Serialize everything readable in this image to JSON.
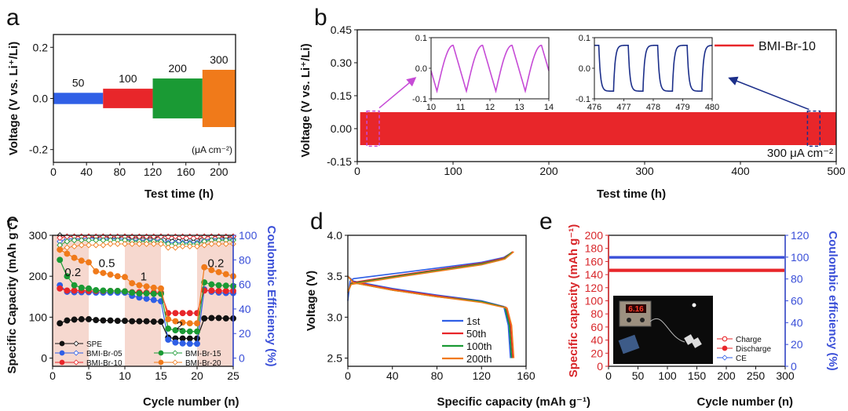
{
  "colors": {
    "blue": "#2f5fe6",
    "red": "#e8262a",
    "green": "#1a9a34",
    "orange": "#f07a1a",
    "magenta": "#c64bd6",
    "navy": "#1c2f8a",
    "black": "#111111",
    "shade": "#f6d8cf",
    "axis_blue": "#3a4fd8",
    "axis_red": "#d8262a"
  },
  "chart_data": [
    {
      "id": "a",
      "type": "area",
      "panel_label": "a",
      "xlabel": "Test time (h)",
      "ylabel": "Voltage (V vs. Li⁺/Li)",
      "xlim": [
        0,
        220
      ],
      "ylim": [
        -0.25,
        0.25
      ],
      "x_ticks": [
        "0",
        "40",
        "80",
        "120",
        "160",
        "200"
      ],
      "y_ticks": [
        "-0.2",
        "0.0",
        "0.2"
      ],
      "unit_note": "(μA cm⁻²)",
      "segments": [
        {
          "label": "50",
          "x": [
            0,
            60
          ],
          "amplitude": 0.022,
          "color": "blue"
        },
        {
          "label": "100",
          "x": [
            60,
            120
          ],
          "amplitude": 0.038,
          "color": "red"
        },
        {
          "label": "200",
          "x": [
            120,
            180
          ],
          "amplitude": 0.078,
          "color": "green"
        },
        {
          "label": "300",
          "x": [
            180,
            220
          ],
          "amplitude": 0.112,
          "color": "orange"
        }
      ]
    },
    {
      "id": "b",
      "type": "line",
      "panel_label": "b",
      "xlabel": "Test time (h)",
      "ylabel": "Voltage (V vs. Li⁺/Li)",
      "xlim": [
        0,
        500
      ],
      "ylim": [
        -0.15,
        0.45
      ],
      "x_ticks": [
        "0",
        "100",
        "200",
        "300",
        "400",
        "500"
      ],
      "y_ticks": [
        "-0.15",
        "0.00",
        "0.15",
        "0.30",
        "0.45"
      ],
      "series": [
        {
          "name": "BMI-Br-10",
          "amplitude": 0.075,
          "color": "red"
        }
      ],
      "annotation": "300 μA cm⁻²",
      "insets": [
        {
          "x_ticks": [
            "10",
            "11",
            "12",
            "13",
            "14"
          ],
          "y_ticks": [
            "0.1",
            "0.0",
            "-0.1"
          ],
          "xlim": [
            10,
            14
          ],
          "cycles": 4,
          "shape": "sawtooth",
          "color": "magenta"
        },
        {
          "x_ticks": [
            "476",
            "477",
            "478",
            "479",
            "480"
          ],
          "y_ticks": [
            "0.1",
            "0.0",
            "-0.1"
          ],
          "xlim": [
            476,
            480
          ],
          "cycles": 4,
          "shape": "square",
          "color": "navy"
        }
      ]
    },
    {
      "id": "c",
      "type": "line",
      "panel_label": "c",
      "xlabel": "Cycle number (n)",
      "ylabel": "Specific Capacity (mAh g⁻¹)",
      "y2label": "Coulombic Efficiency (%)",
      "xlim": [
        0,
        25
      ],
      "ylim": [
        -20,
        300
      ],
      "y2lim": [
        -6.67,
        100
      ],
      "x_ticks": [
        "0",
        "5",
        "10",
        "15",
        "20",
        "25"
      ],
      "y_ticks": [
        "0",
        "100",
        "200",
        "300"
      ],
      "y2_ticks": [
        "0",
        "20",
        "40",
        "60",
        "80",
        "100"
      ],
      "rate_labels": [
        "0.2",
        "0.5",
        "1",
        "2",
        "0.2"
      ],
      "shaded_ranges": [
        [
          0,
          5
        ],
        [
          10,
          15
        ],
        [
          20,
          25
        ]
      ],
      "x": [
        1,
        2,
        3,
        4,
        5,
        6,
        7,
        8,
        9,
        10,
        11,
        12,
        13,
        14,
        15,
        16,
        17,
        18,
        19,
        20,
        21,
        22,
        23,
        24,
        25
      ],
      "series": [
        {
          "name": "SPE",
          "color": "black",
          "filled": true,
          "values": [
            85,
            92,
            94,
            95,
            95,
            93,
            92,
            92,
            91,
            91,
            90,
            90,
            90,
            89,
            89,
            50,
            48,
            48,
            48,
            48,
            97,
            98,
            98,
            97,
            97
          ],
          "ce": [
            100,
            99,
            99,
            99,
            99,
            98,
            99,
            98,
            98,
            99,
            98,
            98,
            98,
            98,
            99,
            96,
            97,
            96,
            96,
            96,
            99,
            99,
            99,
            98,
            99
          ]
        },
        {
          "name": "BMI-Br-05",
          "color": "blue",
          "filled": true,
          "values": [
            178,
            162,
            161,
            161,
            161,
            160,
            160,
            160,
            160,
            160,
            152,
            148,
            145,
            142,
            139,
            45,
            38,
            36,
            35,
            35,
            168,
            162,
            160,
            159,
            159
          ],
          "ce": [
            95,
            97,
            97,
            97,
            98,
            97,
            97,
            97,
            97,
            97,
            96,
            96,
            96,
            96,
            96,
            94,
            94,
            94,
            94,
            94,
            96,
            97,
            97,
            97,
            97
          ]
        },
        {
          "name": "BMI-Br-10",
          "color": "red",
          "filled": true,
          "values": [
            170,
            165,
            165,
            165,
            164,
            164,
            164,
            164,
            164,
            163,
            161,
            161,
            160,
            160,
            160,
            110,
            110,
            110,
            110,
            110,
            165,
            165,
            164,
            164,
            164
          ],
          "ce": [
            98,
            99,
            99,
            99,
            99,
            99,
            99,
            99,
            99,
            99,
            99,
            99,
            99,
            99,
            99,
            99,
            99,
            99,
            99,
            99,
            99,
            99,
            99,
            99,
            99
          ]
        },
        {
          "name": "BMI-Br-15",
          "color": "green",
          "filled": true,
          "values": [
            240,
            200,
            178,
            172,
            170,
            166,
            165,
            164,
            164,
            163,
            160,
            158,
            158,
            157,
            157,
            72,
            68,
            66,
            65,
            65,
            185,
            180,
            178,
            177,
            176
          ],
          "ce": [
            92,
            95,
            96,
            96,
            96,
            96,
            96,
            96,
            96,
            96,
            95,
            95,
            95,
            95,
            95,
            93,
            93,
            93,
            93,
            93,
            95,
            96,
            96,
            96,
            96
          ]
        },
        {
          "name": "BMI-Br-20",
          "color": "orange",
          "filled": true,
          "values": [
            265,
            255,
            245,
            238,
            234,
            212,
            208,
            204,
            200,
            198,
            183,
            178,
            175,
            172,
            170,
            95,
            90,
            87,
            85,
            85,
            222,
            215,
            210,
            205,
            200
          ],
          "ce": [
            88,
            90,
            91,
            92,
            92,
            92,
            92,
            93,
            93,
            93,
            93,
            93,
            93,
            93,
            93,
            90,
            90,
            91,
            91,
            91,
            92,
            93,
            93,
            93,
            93
          ]
        }
      ],
      "legend": [
        "SPE",
        "BMI-Br-05",
        "BMI-Br-10",
        "BMI-Br-15",
        "BMI-Br-20"
      ]
    },
    {
      "id": "d",
      "type": "line",
      "panel_label": "d",
      "xlabel": "Specific capacity (mAh g⁻¹)",
      "ylabel": "Voltage (V)",
      "xlim": [
        0,
        160
      ],
      "ylim": [
        2.4,
        4.0
      ],
      "x_ticks": [
        "0",
        "40",
        "80",
        "120",
        "160"
      ],
      "y_ticks": [
        "2.5",
        "3.0",
        "3.5",
        "4.0"
      ],
      "series": [
        {
          "name": "1st",
          "color": "blue",
          "capacity": 146,
          "charge": [
            [
              0,
              3.2
            ],
            [
              2,
              3.44
            ],
            [
              5,
              3.47
            ],
            [
              40,
              3.53
            ],
            [
              80,
              3.6
            ],
            [
              120,
              3.67
            ],
            [
              140,
              3.73
            ],
            [
              146,
              3.78
            ]
          ],
          "discharge": [
            [
              0,
              3.5
            ],
            [
              5,
              3.44
            ],
            [
              40,
              3.35
            ],
            [
              80,
              3.27
            ],
            [
              120,
              3.2
            ],
            [
              140,
              3.13
            ],
            [
              144,
              2.9
            ],
            [
              146,
              2.5
            ]
          ]
        },
        {
          "name": "50th",
          "color": "red",
          "capacity": 148,
          "charge": [
            [
              0,
              3.3
            ],
            [
              3,
              3.42
            ],
            [
              40,
              3.5
            ],
            [
              80,
              3.58
            ],
            [
              120,
              3.66
            ],
            [
              140,
              3.72
            ],
            [
              148,
              3.8
            ]
          ],
          "discharge": [
            [
              0,
              3.5
            ],
            [
              5,
              3.43
            ],
            [
              40,
              3.34
            ],
            [
              80,
              3.26
            ],
            [
              120,
              3.19
            ],
            [
              142,
              3.12
            ],
            [
              146,
              2.9
            ],
            [
              148,
              2.5
            ]
          ]
        },
        {
          "name": "100th",
          "color": "green",
          "capacity": 147,
          "charge": [
            [
              0,
              3.3
            ],
            [
              3,
              3.41
            ],
            [
              40,
              3.49
            ],
            [
              80,
              3.57
            ],
            [
              120,
              3.65
            ],
            [
              140,
              3.71
            ],
            [
              147,
              3.79
            ]
          ],
          "discharge": [
            [
              0,
              3.5
            ],
            [
              5,
              3.42
            ],
            [
              40,
              3.33
            ],
            [
              80,
              3.25
            ],
            [
              120,
              3.19
            ],
            [
              141,
              3.12
            ],
            [
              145,
              2.9
            ],
            [
              147,
              2.5
            ]
          ]
        },
        {
          "name": "200th",
          "color": "orange",
          "capacity": 149,
          "charge": [
            [
              0,
              3.3
            ],
            [
              3,
              3.4
            ],
            [
              40,
              3.48
            ],
            [
              80,
              3.56
            ],
            [
              120,
              3.64
            ],
            [
              141,
              3.71
            ],
            [
              149,
              3.8
            ]
          ],
          "discharge": [
            [
              0,
              3.5
            ],
            [
              5,
              3.42
            ],
            [
              40,
              3.33
            ],
            [
              80,
              3.25
            ],
            [
              120,
              3.18
            ],
            [
              143,
              3.11
            ],
            [
              147,
              2.9
            ],
            [
              149,
              2.5
            ]
          ]
        }
      ],
      "legend": [
        "1st",
        "50th",
        "100th",
        "200th"
      ]
    },
    {
      "id": "e",
      "type": "scatter",
      "panel_label": "e",
      "xlabel": "Cycle number (n)",
      "ylabel": "Specific capacity (mAh g⁻¹)",
      "y2label": "Coulombic efficiency (%)",
      "xlim": [
        0,
        300
      ],
      "ylim": [
        0,
        200
      ],
      "y2lim": [
        0,
        120
      ],
      "x_ticks": [
        "0",
        "50",
        "100",
        "150",
        "200",
        "250",
        "300"
      ],
      "y_ticks": [
        "0",
        "20",
        "40",
        "60",
        "80",
        "100",
        "120",
        "140",
        "160",
        "180",
        "200"
      ],
      "y2_ticks": [
        "0",
        "20",
        "40",
        "60",
        "80",
        "100",
        "120"
      ],
      "series": [
        {
          "name": "Charge",
          "color": "red",
          "value": 147
        },
        {
          "name": "Discharge",
          "color": "red",
          "value": 146
        },
        {
          "name": "CE",
          "color": "blue",
          "value": 99.8
        }
      ],
      "legend": [
        "Charge",
        "Discharge",
        "CE"
      ],
      "photo_display": "6.16"
    }
  ]
}
